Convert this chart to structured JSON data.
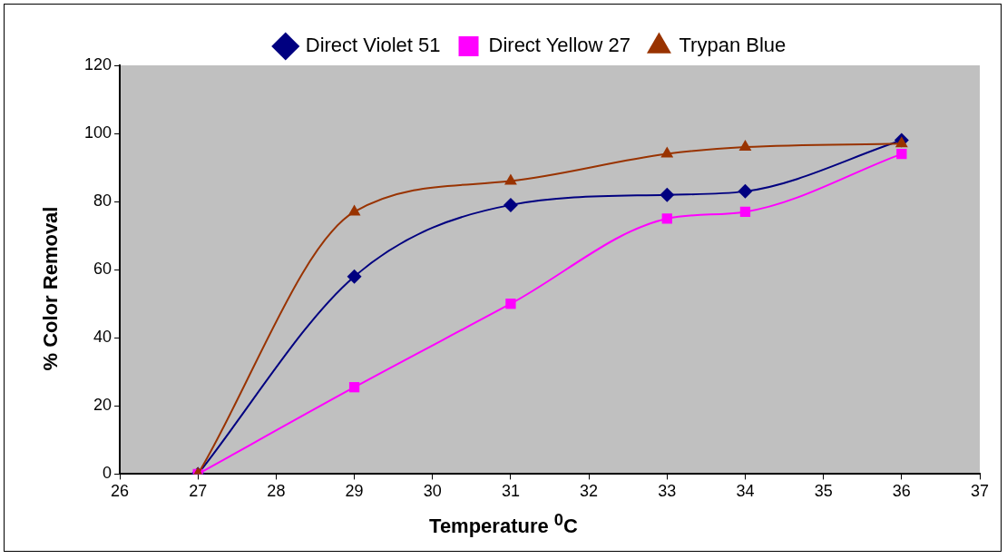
{
  "chart_data": {
    "type": "line",
    "xlabel": "Temperature $^{0}$C",
    "ylabel": "% Color Removal",
    "x": [
      27,
      29,
      31,
      33,
      34,
      36
    ],
    "series": [
      {
        "name": "Direct Violet 51",
        "color": "#000080",
        "marker": "diamond",
        "values": [
          0,
          58,
          79,
          82,
          83,
          98
        ]
      },
      {
        "name": "Direct Yellow 27",
        "color": "#ff00ff",
        "marker": "square",
        "values": [
          0,
          25.5,
          50,
          75,
          77,
          94
        ]
      },
      {
        "name": "Trypan Blue",
        "color": "#993300",
        "marker": "triangle",
        "values": [
          0,
          77,
          86,
          94,
          96,
          97
        ]
      }
    ],
    "xlim": [
      26,
      37
    ],
    "xticks": [
      26,
      27,
      28,
      29,
      30,
      31,
      32,
      33,
      34,
      35,
      36,
      37
    ],
    "ylim": [
      0,
      120
    ],
    "yticks": [
      0,
      20,
      40,
      60,
      80,
      100,
      120
    ],
    "grid": false,
    "legend": "top"
  }
}
